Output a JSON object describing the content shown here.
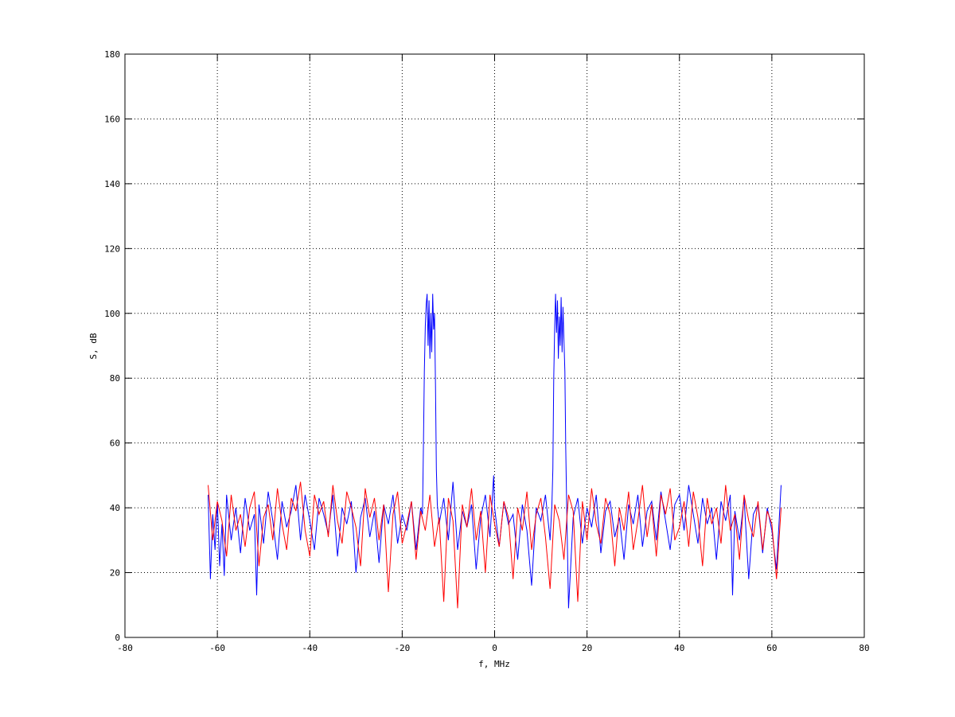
{
  "chart_data": {
    "type": "line",
    "title": "",
    "xlabel": "f, MHz",
    "ylabel": "S, dB",
    "xlim": [
      -80,
      80
    ],
    "ylim": [
      0,
      180
    ],
    "xticks": [
      -80,
      -60,
      -40,
      -20,
      0,
      20,
      40,
      60,
      80
    ],
    "yticks": [
      0,
      20,
      40,
      60,
      80,
      100,
      120,
      140,
      160,
      180
    ],
    "grid": true,
    "legend": "none",
    "series": [
      {
        "color": "#0000ff",
        "points": [
          [
            -62,
            44
          ],
          [
            -61.5,
            18
          ],
          [
            -61,
            38
          ],
          [
            -60.5,
            27
          ],
          [
            -60,
            42
          ],
          [
            -59.5,
            22
          ],
          [
            -59,
            35
          ],
          [
            -58.5,
            19
          ],
          [
            -58,
            44
          ],
          [
            -57,
            30
          ],
          [
            -56,
            40
          ],
          [
            -55,
            26
          ],
          [
            -54,
            43
          ],
          [
            -53,
            33
          ],
          [
            -52,
            38
          ],
          [
            -51.5,
            13
          ],
          [
            -51,
            41
          ],
          [
            -50,
            29
          ],
          [
            -49,
            45
          ],
          [
            -48,
            36
          ],
          [
            -47,
            24
          ],
          [
            -46,
            42
          ],
          [
            -45,
            34
          ],
          [
            -44,
            39
          ],
          [
            -43,
            47
          ],
          [
            -42,
            30
          ],
          [
            -41,
            44
          ],
          [
            -40,
            36
          ],
          [
            -39,
            27
          ],
          [
            -38,
            43
          ],
          [
            -37,
            38
          ],
          [
            -36,
            32
          ],
          [
            -35,
            44
          ],
          [
            -34,
            25
          ],
          [
            -33,
            40
          ],
          [
            -32,
            35
          ],
          [
            -31,
            42
          ],
          [
            -30,
            20
          ],
          [
            -29,
            37
          ],
          [
            -28,
            43
          ],
          [
            -27,
            31
          ],
          [
            -26,
            39
          ],
          [
            -25,
            23
          ],
          [
            -24,
            41
          ],
          [
            -23,
            35
          ],
          [
            -22,
            44
          ],
          [
            -21,
            29
          ],
          [
            -20,
            38
          ],
          [
            -19,
            33
          ],
          [
            -18,
            42
          ],
          [
            -17,
            27
          ],
          [
            -16,
            40
          ],
          [
            -15.6,
            38
          ],
          [
            -15.4,
            60
          ],
          [
            -15.2,
            82
          ],
          [
            -15,
            96
          ],
          [
            -14.8,
            103
          ],
          [
            -14.6,
            106
          ],
          [
            -14.4,
            90
          ],
          [
            -14.2,
            104
          ],
          [
            -14,
            86
          ],
          [
            -13.8,
            100
          ],
          [
            -13.6,
            88
          ],
          [
            -13.4,
            106
          ],
          [
            -13.2,
            95
          ],
          [
            -13,
            100
          ],
          [
            -12.8,
            78
          ],
          [
            -12.6,
            52
          ],
          [
            -12.4,
            41
          ],
          [
            -12,
            35
          ],
          [
            -11,
            43
          ],
          [
            -10,
            30
          ],
          [
            -9,
            48
          ],
          [
            -8,
            27
          ],
          [
            -7,
            39
          ],
          [
            -6,
            34
          ],
          [
            -5,
            41
          ],
          [
            -4,
            21
          ],
          [
            -3,
            37
          ],
          [
            -2,
            44
          ],
          [
            -1,
            31
          ],
          [
            -0.2,
            50
          ],
          [
            0,
            40
          ],
          [
            1,
            28
          ],
          [
            2,
            42
          ],
          [
            3,
            35
          ],
          [
            4,
            38
          ],
          [
            5,
            24
          ],
          [
            6,
            41
          ],
          [
            7,
            33
          ],
          [
            8,
            16
          ],
          [
            9,
            40
          ],
          [
            10,
            36
          ],
          [
            11,
            44
          ],
          [
            12,
            30
          ],
          [
            12.4,
            41
          ],
          [
            12.6,
            52
          ],
          [
            12.8,
            80
          ],
          [
            13,
            96
          ],
          [
            13.2,
            106
          ],
          [
            13.4,
            94
          ],
          [
            13.6,
            104
          ],
          [
            13.8,
            86
          ],
          [
            14,
            99
          ],
          [
            14.2,
            90
          ],
          [
            14.4,
            105
          ],
          [
            14.6,
            88
          ],
          [
            14.8,
            102
          ],
          [
            15,
            92
          ],
          [
            15.2,
            82
          ],
          [
            15.4,
            58
          ],
          [
            15.6,
            40
          ],
          [
            16,
            9
          ],
          [
            17,
            37
          ],
          [
            18,
            43
          ],
          [
            19,
            29
          ],
          [
            20,
            40
          ],
          [
            21,
            34
          ],
          [
            22,
            44
          ],
          [
            23,
            26
          ],
          [
            24,
            39
          ],
          [
            25,
            42
          ],
          [
            26,
            31
          ],
          [
            27,
            37
          ],
          [
            28,
            24
          ],
          [
            29,
            41
          ],
          [
            30,
            35
          ],
          [
            31,
            44
          ],
          [
            32,
            28
          ],
          [
            33,
            39
          ],
          [
            34,
            42
          ],
          [
            35,
            30
          ],
          [
            36,
            45
          ],
          [
            37,
            36
          ],
          [
            38,
            27
          ],
          [
            39,
            41
          ],
          [
            40,
            44
          ],
          [
            41,
            33
          ],
          [
            42,
            47
          ],
          [
            43,
            38
          ],
          [
            44,
            29
          ],
          [
            45,
            43
          ],
          [
            46,
            35
          ],
          [
            47,
            40
          ],
          [
            48,
            24
          ],
          [
            49,
            42
          ],
          [
            50,
            36
          ],
          [
            51,
            44
          ],
          [
            51.5,
            13
          ],
          [
            52,
            39
          ],
          [
            53,
            30
          ],
          [
            54,
            43
          ],
          [
            55,
            18
          ],
          [
            56,
            38
          ],
          [
            57,
            41
          ],
          [
            58,
            26
          ],
          [
            59,
            40
          ],
          [
            60,
            33
          ],
          [
            61,
            21
          ],
          [
            62,
            47
          ]
        ]
      },
      {
        "color": "#ff0000",
        "x_start": -62,
        "x_step": 1,
        "values": [
          47,
          30,
          42,
          36,
          25,
          44,
          33,
          38,
          28,
          40,
          45,
          22,
          37,
          41,
          30,
          46,
          35,
          27,
          43,
          39,
          48,
          33,
          25,
          44,
          38,
          42,
          31,
          47,
          36,
          29,
          45,
          40,
          34,
          22,
          46,
          37,
          43,
          30,
          41,
          14,
          38,
          45,
          29,
          35,
          42,
          24,
          39,
          33,
          44,
          28,
          37,
          11,
          43,
          36,
          9,
          41,
          34,
          46,
          30,
          39,
          20,
          44,
          35,
          28,
          42,
          37,
          18,
          40,
          33,
          45,
          27,
          38,
          43,
          31,
          15,
          41,
          36,
          24,
          44,
          39,
          11,
          42,
          30,
          46,
          35,
          29,
          43,
          38,
          22,
          40,
          33,
          45,
          27,
          36,
          47,
          31,
          41,
          25,
          44,
          38,
          46,
          30,
          34,
          42,
          28,
          45,
          37,
          22,
          43,
          35,
          40,
          29,
          47,
          33,
          38,
          24,
          44,
          36,
          31,
          42,
          27,
          39,
          35,
          18,
          40
        ]
      }
    ]
  }
}
